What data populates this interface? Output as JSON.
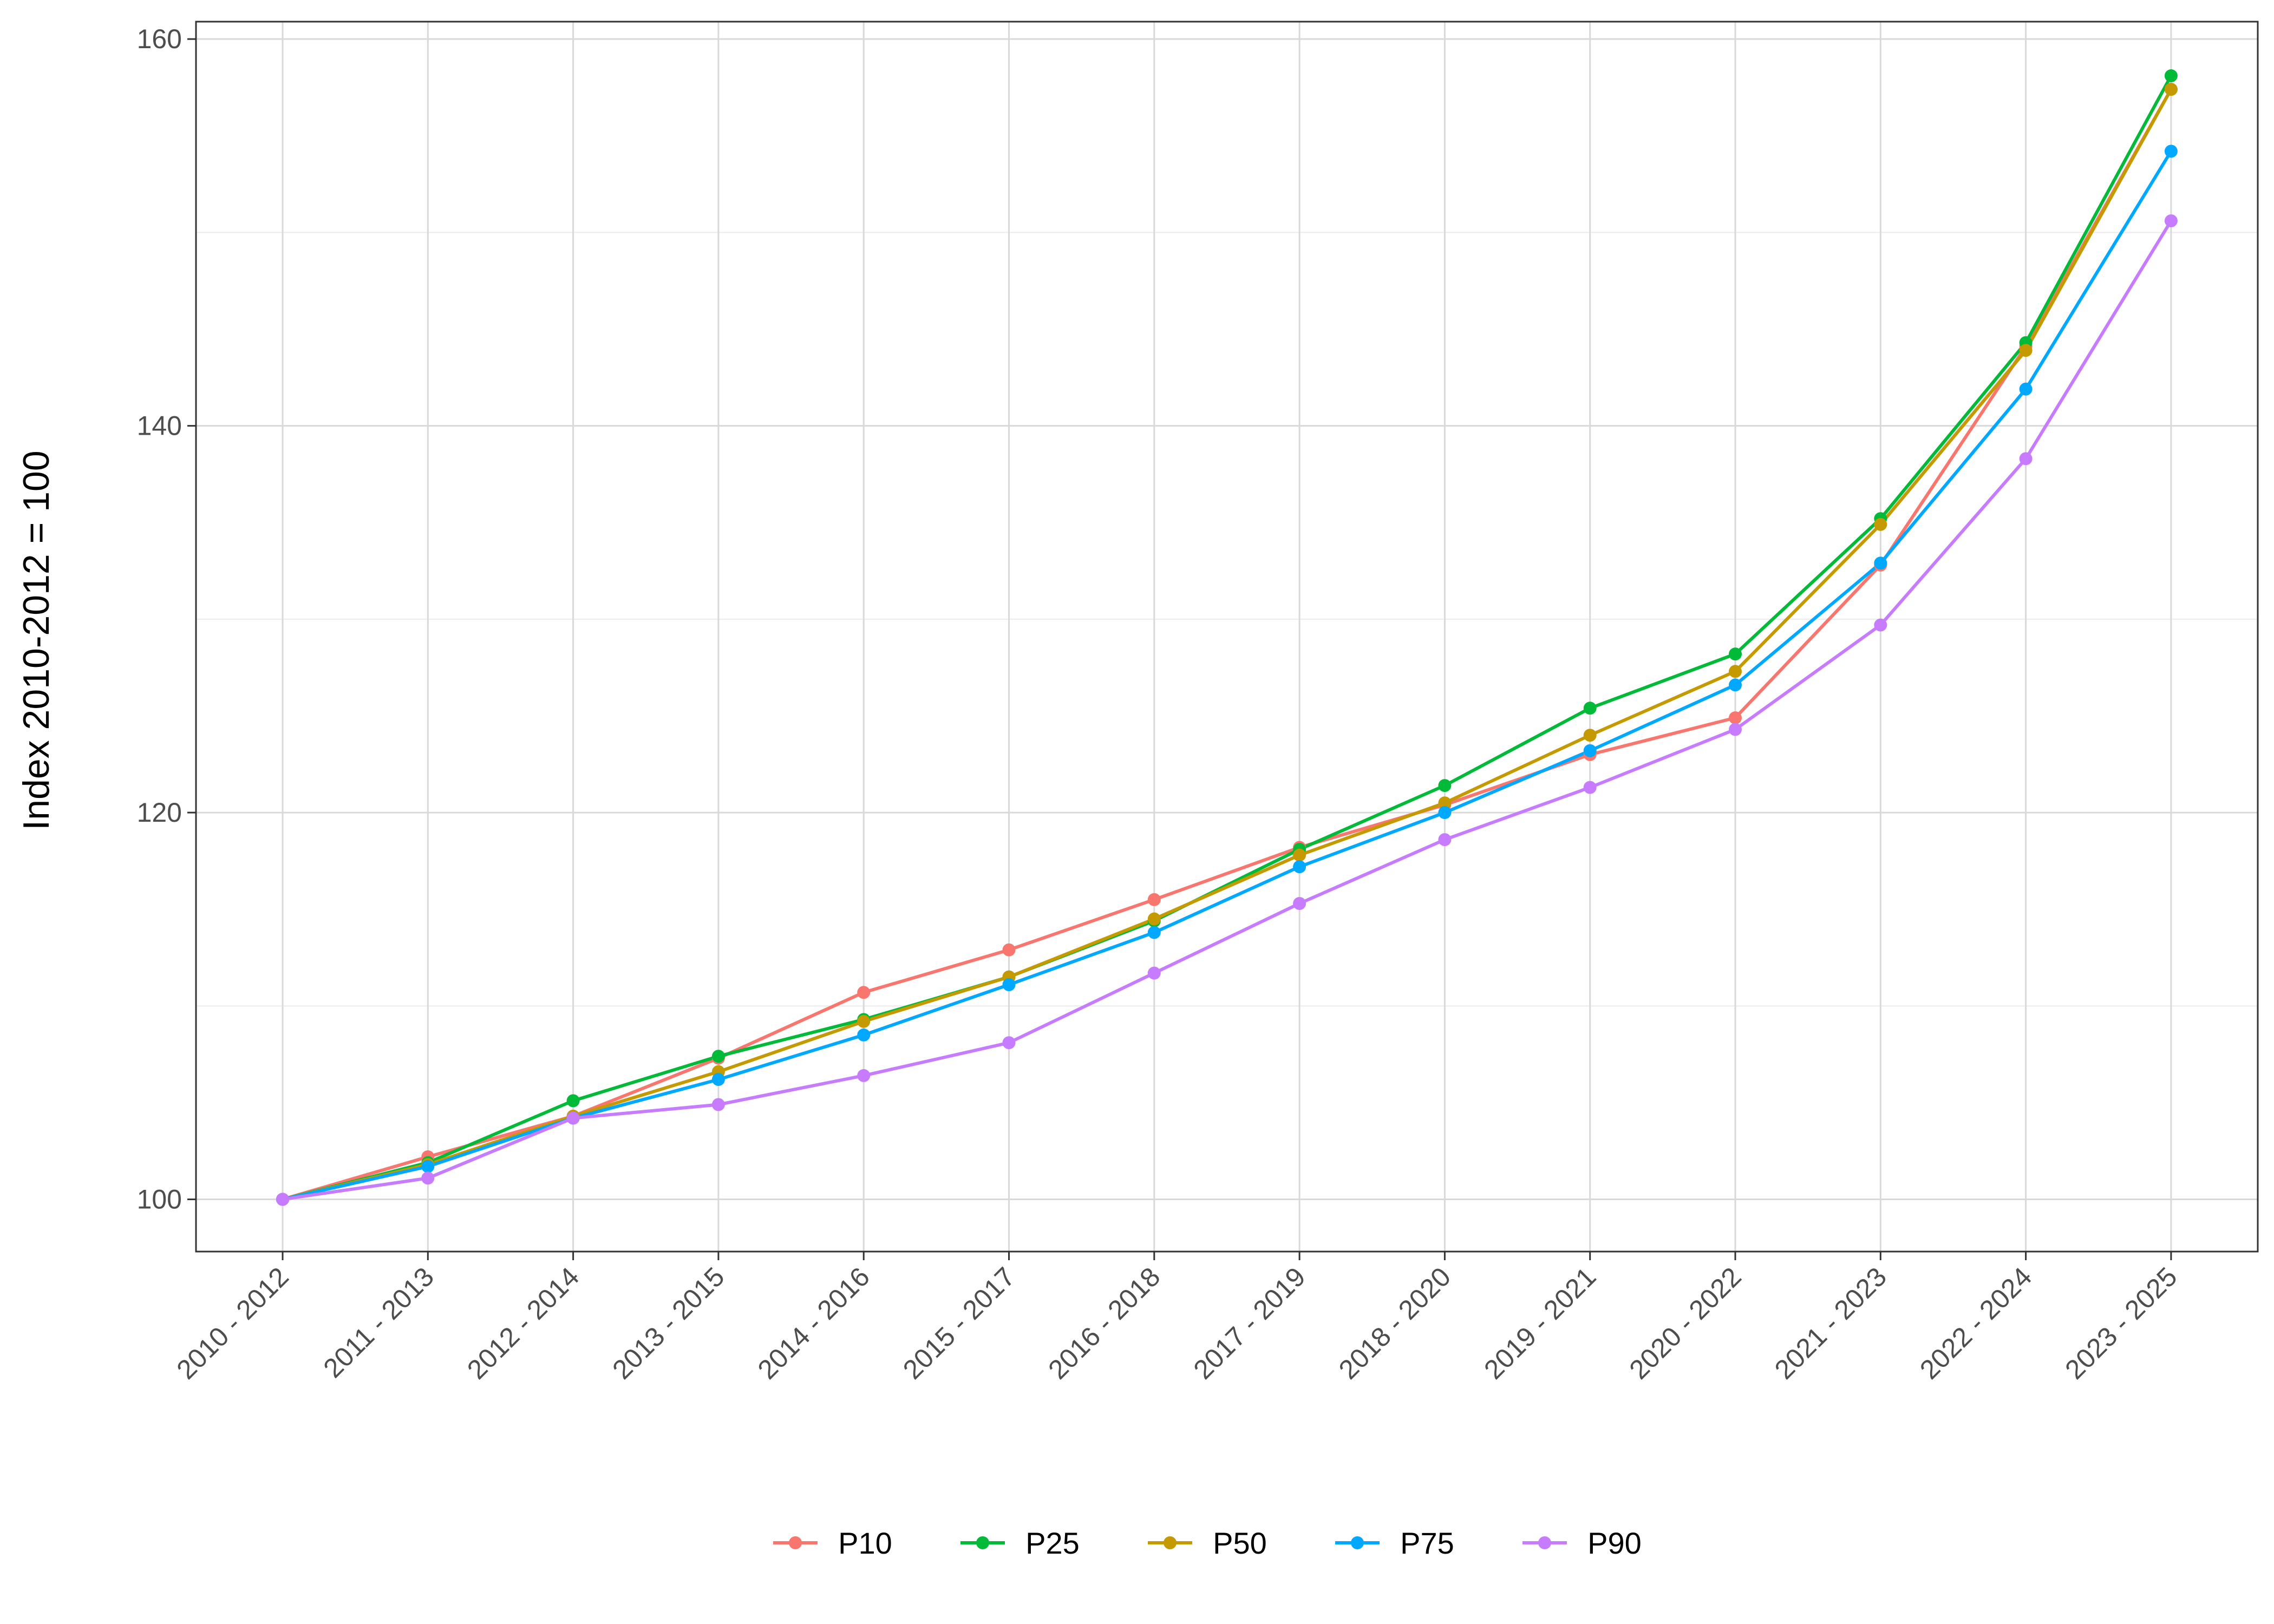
{
  "chart_data": {
    "type": "line",
    "title": "",
    "xlabel": "",
    "ylabel": "Index 2010-2012 = 100",
    "ylim": [
      97.3,
      160.9
    ],
    "yticks": [
      100,
      120,
      140,
      160
    ],
    "grid": true,
    "legend_position": "bottom",
    "categories": [
      "2010 - 2012",
      "2011 - 2013",
      "2012 - 2014",
      "2013 - 2015",
      "2014 - 2016",
      "2015 - 2017",
      "2016 - 2018",
      "2017 - 2019",
      "2018 - 2020",
      "2019 - 2021",
      "2020 - 2022",
      "2021 - 2023",
      "2022 - 2024",
      "2023 - 2025"
    ],
    "series": [
      {
        "name": "P10",
        "color": "#F8766D",
        "values": [
          100.0,
          102.2,
          104.3,
          107.3,
          110.7,
          112.9,
          115.5,
          118.2,
          120.4,
          123.0,
          124.9,
          132.8,
          144.1,
          157.4
        ]
      },
      {
        "name": "P25",
        "color": "#00BA38",
        "values": [
          100.0,
          101.9,
          105.1,
          107.4,
          109.3,
          111.5,
          114.4,
          118.1,
          121.4,
          125.4,
          128.2,
          135.2,
          144.3,
          158.1
        ]
      },
      {
        "name": "P50",
        "color": "#C49A00",
        "values": [
          100.0,
          101.8,
          104.3,
          106.6,
          109.2,
          111.5,
          114.5,
          117.8,
          120.5,
          124.0,
          127.3,
          134.9,
          143.9,
          157.4
        ]
      },
      {
        "name": "P75",
        "color": "#00A9FF",
        "values": [
          100.0,
          101.7,
          104.2,
          106.2,
          108.5,
          111.1,
          113.8,
          117.2,
          120.0,
          123.2,
          126.6,
          132.9,
          141.9,
          154.2
        ]
      },
      {
        "name": "P90",
        "color": "#C77CFF",
        "values": [
          100.0,
          101.1,
          104.2,
          104.9,
          106.4,
          108.1,
          111.7,
          115.3,
          118.6,
          121.3,
          124.3,
          129.7,
          138.3,
          150.6
        ]
      }
    ]
  }
}
